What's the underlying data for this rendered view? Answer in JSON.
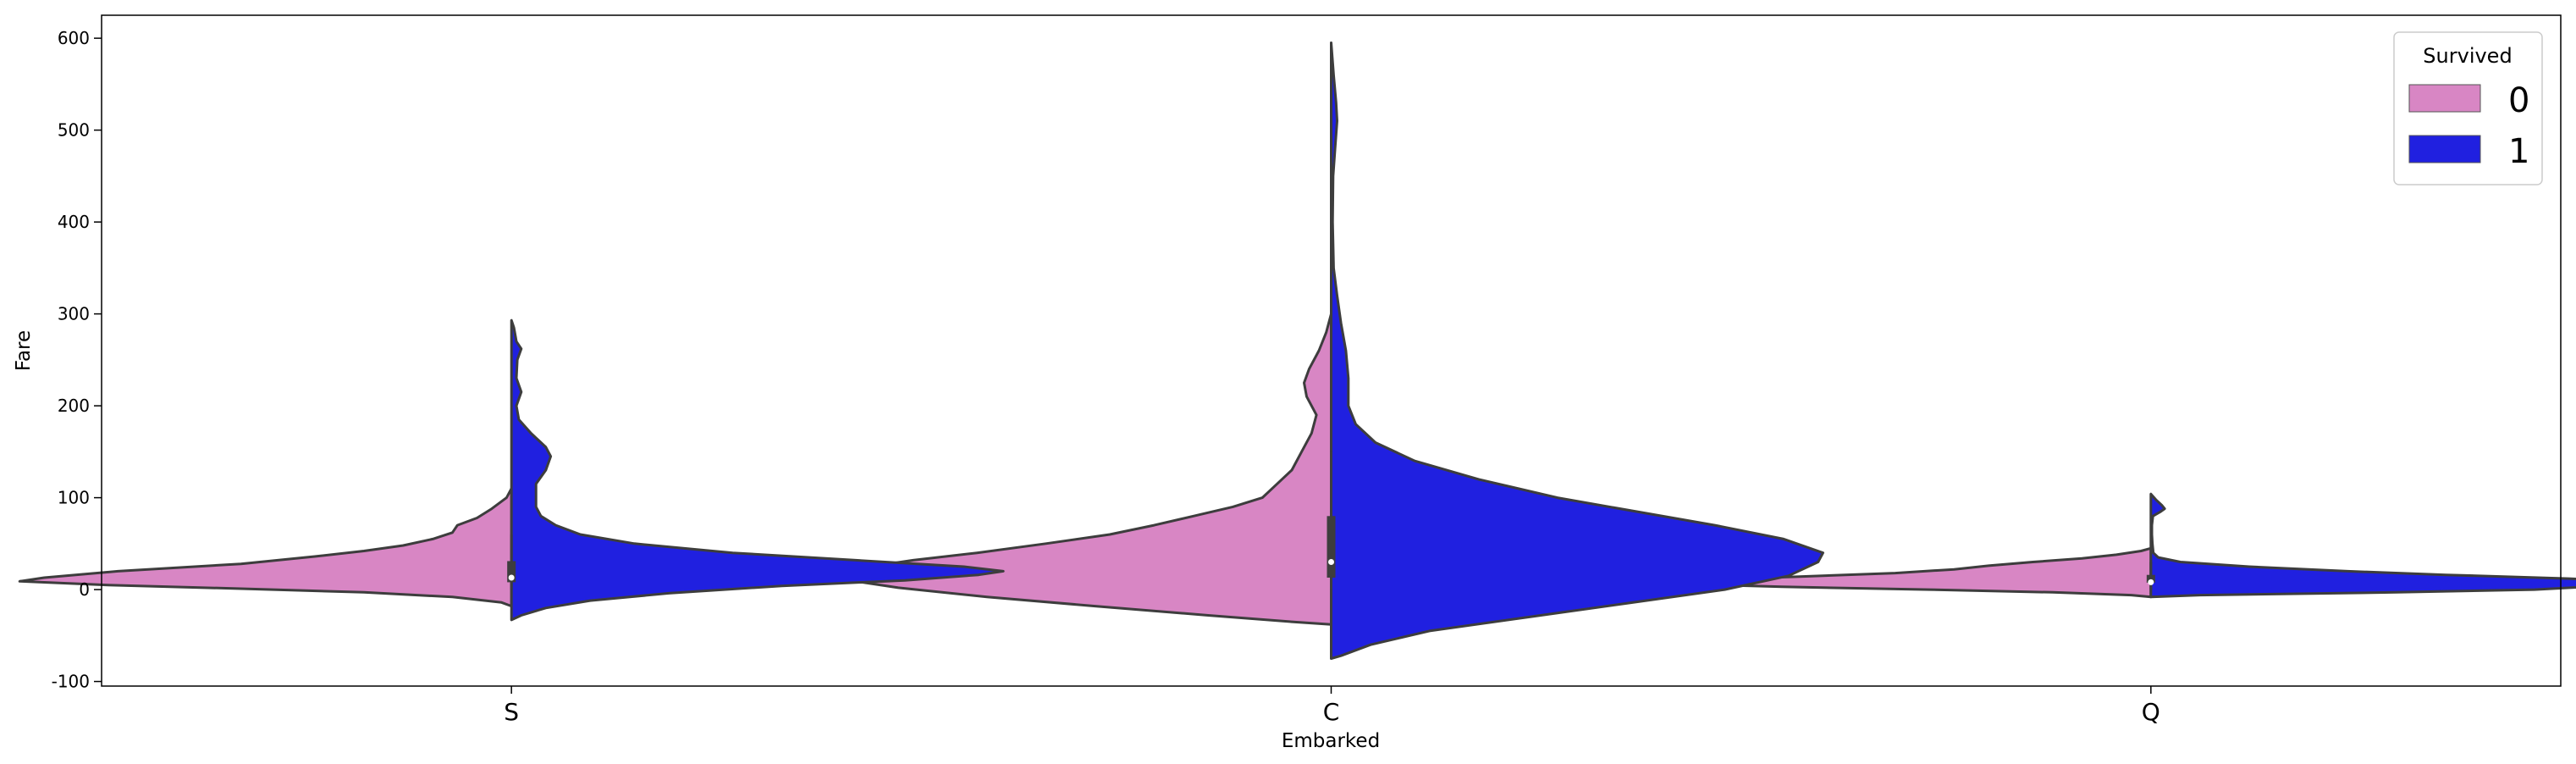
{
  "chart_data": {
    "type": "violin",
    "split": true,
    "title": "",
    "xlabel": "Embarked",
    "ylabel": "Fare",
    "categories": [
      "S",
      "C",
      "Q"
    ],
    "ylim": [
      -105,
      625
    ],
    "yticks": [
      -100,
      0,
      100,
      200,
      300,
      400,
      500,
      600
    ],
    "grid": false,
    "legend": {
      "title": "Survived",
      "placement": "top-right",
      "entries": [
        {
          "label": "0",
          "color": "#d886c4"
        },
        {
          "label": "1",
          "color": "#2020e0"
        }
      ]
    },
    "series": [
      {
        "name": "0",
        "side": "left",
        "color": "#d886c4",
        "violins": [
          {
            "category": "S",
            "profile": [
              [
                -18,
                0.0
              ],
              [
                -14,
                0.02
              ],
              [
                -8,
                0.12
              ],
              [
                -3,
                0.3
              ],
              [
                1,
                0.55
              ],
              [
                5,
                0.82
              ],
              [
                9,
                1.0
              ],
              [
                13,
                0.95
              ],
              [
                20,
                0.8
              ],
              [
                28,
                0.55
              ],
              [
                36,
                0.4
              ],
              [
                42,
                0.3
              ],
              [
                48,
                0.22
              ],
              [
                55,
                0.16
              ],
              [
                62,
                0.12
              ],
              [
                70,
                0.11
              ],
              [
                78,
                0.07
              ],
              [
                88,
                0.04
              ],
              [
                100,
                0.01
              ],
              [
                110,
                0.0
              ]
            ]
          },
          {
            "category": "C",
            "profile": [
              [
                -38,
                0.0
              ],
              [
                -35,
                0.08
              ],
              [
                -28,
                0.25
              ],
              [
                -18,
                0.48
              ],
              [
                -8,
                0.7
              ],
              [
                2,
                0.88
              ],
              [
                10,
                0.98
              ],
              [
                16,
                1.0
              ],
              [
                24,
                0.95
              ],
              [
                32,
                0.85
              ],
              [
                40,
                0.72
              ],
              [
                50,
                0.58
              ],
              [
                60,
                0.45
              ],
              [
                70,
                0.36
              ],
              [
                80,
                0.28
              ],
              [
                90,
                0.2
              ],
              [
                100,
                0.14
              ],
              [
                115,
                0.11
              ],
              [
                130,
                0.08
              ],
              [
                150,
                0.06
              ],
              [
                170,
                0.04
              ],
              [
                190,
                0.03
              ],
              [
                210,
                0.05
              ],
              [
                225,
                0.055
              ],
              [
                240,
                0.045
              ],
              [
                260,
                0.025
              ],
              [
                280,
                0.01
              ],
              [
                300,
                0.0
              ]
            ]
          },
          {
            "category": "Q",
            "profile": [
              [
                -8,
                0.0
              ],
              [
                -6,
                0.04
              ],
              [
                -3,
                0.2
              ],
              [
                0,
                0.45
              ],
              [
                3,
                0.75
              ],
              [
                6,
                0.95
              ],
              [
                8,
                1.0
              ],
              [
                10,
                0.95
              ],
              [
                14,
                0.72
              ],
              [
                18,
                0.52
              ],
              [
                22,
                0.4
              ],
              [
                26,
                0.33
              ],
              [
                30,
                0.24
              ],
              [
                34,
                0.14
              ],
              [
                38,
                0.07
              ],
              [
                42,
                0.02
              ],
              [
                45,
                0.0
              ]
            ]
          }
        ]
      },
      {
        "name": "1",
        "side": "right",
        "color": "#2020e0",
        "violins": [
          {
            "category": "S",
            "profile": [
              [
                -33,
                0.0
              ],
              [
                -28,
                0.02
              ],
              [
                -20,
                0.07
              ],
              [
                -12,
                0.16
              ],
              [
                -4,
                0.32
              ],
              [
                4,
                0.55
              ],
              [
                10,
                0.8
              ],
              [
                16,
                0.95
              ],
              [
                20,
                1.0
              ],
              [
                25,
                0.92
              ],
              [
                32,
                0.7
              ],
              [
                40,
                0.45
              ],
              [
                50,
                0.25
              ],
              [
                60,
                0.14
              ],
              [
                70,
                0.09
              ],
              [
                80,
                0.06
              ],
              [
                90,
                0.05
              ],
              [
                100,
                0.05
              ],
              [
                115,
                0.05
              ],
              [
                130,
                0.07
              ],
              [
                145,
                0.08
              ],
              [
                155,
                0.07
              ],
              [
                170,
                0.04
              ],
              [
                185,
                0.015
              ],
              [
                200,
                0.01
              ],
              [
                215,
                0.02
              ],
              [
                230,
                0.01
              ],
              [
                250,
                0.012
              ],
              [
                262,
                0.02
              ],
              [
                270,
                0.01
              ],
              [
                285,
                0.005
              ],
              [
                293,
                0.0
              ]
            ]
          },
          {
            "category": "C",
            "profile": [
              [
                -75,
                0.0
              ],
              [
                -72,
                0.02
              ],
              [
                -60,
                0.08
              ],
              [
                -45,
                0.2
              ],
              [
                -30,
                0.4
              ],
              [
                -15,
                0.6
              ],
              [
                0,
                0.8
              ],
              [
                15,
                0.93
              ],
              [
                30,
                0.99
              ],
              [
                40,
                1.0
              ],
              [
                55,
                0.92
              ],
              [
                70,
                0.78
              ],
              [
                85,
                0.62
              ],
              [
                100,
                0.46
              ],
              [
                120,
                0.3
              ],
              [
                140,
                0.17
              ],
              [
                160,
                0.09
              ],
              [
                180,
                0.05
              ],
              [
                200,
                0.035
              ],
              [
                230,
                0.035
              ],
              [
                260,
                0.03
              ],
              [
                290,
                0.02
              ],
              [
                320,
                0.012
              ],
              [
                350,
                0.005
              ],
              [
                400,
                0.003
              ],
              [
                450,
                0.004
              ],
              [
                480,
                0.008
              ],
              [
                510,
                0.012
              ],
              [
                530,
                0.01
              ],
              [
                560,
                0.005
              ],
              [
                595,
                0.0
              ]
            ]
          },
          {
            "category": "Q",
            "profile": [
              [
                -8,
                0.0
              ],
              [
                -6,
                0.1
              ],
              [
                -3,
                0.5
              ],
              [
                0,
                0.78
              ],
              [
                4,
                0.92
              ],
              [
                8,
                1.0
              ],
              [
                12,
                0.85
              ],
              [
                16,
                0.6
              ],
              [
                20,
                0.4
              ],
              [
                25,
                0.2
              ],
              [
                30,
                0.06
              ],
              [
                35,
                0.015
              ],
              [
                40,
                0.005
              ],
              [
                50,
                0.003
              ],
              [
                60,
                0.002
              ],
              [
                70,
                0.002
              ],
              [
                80,
                0.004
              ],
              [
                85,
                0.02
              ],
              [
                88,
                0.028
              ],
              [
                92,
                0.022
              ],
              [
                98,
                0.01
              ],
              [
                104,
                0.0
              ]
            ]
          }
        ]
      }
    ],
    "box_summary": [
      {
        "category": "S",
        "q1": 8,
        "median": 13,
        "q3": 31,
        "whisker_low": 0,
        "whisker_high": 60
      },
      {
        "category": "C",
        "q1": 13,
        "median": 30,
        "q3": 80,
        "whisker_low": 0,
        "whisker_high": 150
      },
      {
        "category": "Q",
        "q1": 7.5,
        "median": 8,
        "q3": 16,
        "whisker_low": 0,
        "whisker_high": 30
      }
    ],
    "max_half_width_data": 0.6
  }
}
